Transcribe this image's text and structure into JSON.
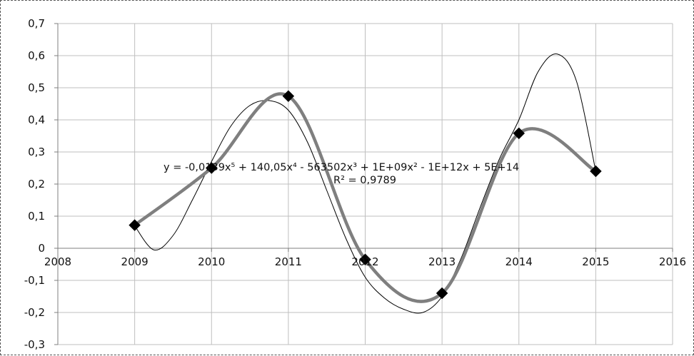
{
  "chart_data": {
    "type": "scatter",
    "title": "",
    "xlabel": "",
    "ylabel": "",
    "xlim": [
      2008,
      2016
    ],
    "ylim": [
      -0.3,
      0.7
    ],
    "x_ticks": [
      2008,
      2009,
      2010,
      2011,
      2012,
      2013,
      2014,
      2015,
      2016
    ],
    "y_ticks": [
      -0.3,
      -0.2,
      -0.1,
      0,
      0.1,
      0.2,
      0.3,
      0.4,
      0.5,
      0.6,
      0.7
    ],
    "x_tick_labels": [
      "2008",
      "2009",
      "2010",
      "2011",
      "2012",
      "2013",
      "2014",
      "2015",
      "2016"
    ],
    "y_tick_labels": [
      "-0,3",
      "-0,2",
      "-0,1",
      "0",
      "0,1",
      "0,2",
      "0,3",
      "0,4",
      "0,5",
      "0,6",
      "0,7"
    ],
    "grid": true,
    "legend": "none",
    "series": [
      {
        "marker": "diamond",
        "line": "smoothed",
        "color": "#7f7f7f",
        "marker_color": "#000000",
        "x": [
          2009,
          2010,
          2011,
          2012,
          2013,
          2014,
          2015
        ],
        "y": [
          0.072,
          0.25,
          0.474,
          -0.035,
          -0.14,
          0.358,
          0.24
        ]
      }
    ],
    "trendline": {
      "type": "polynomial",
      "order": 5,
      "color": "#000000",
      "equation": "y = -0,0139x⁵ + 140,05x⁴ - 563502x³ + 1E+09x² - 1E+12x + 5E+14",
      "r_squared": "R² = 0,9789",
      "curve_x": [
        2009,
        2009.25,
        2009.5,
        2009.75,
        2010,
        2010.25,
        2010.5,
        2010.75,
        2011,
        2011.25,
        2011.5,
        2011.75,
        2012,
        2012.25,
        2012.5,
        2012.75,
        2013,
        2013.25,
        2013.5,
        2013.75,
        2014,
        2014.25,
        2014.5,
        2014.75,
        2015
      ],
      "curve_y": [
        0.07,
        -0.005,
        0.04,
        0.15,
        0.27,
        0.38,
        0.445,
        0.46,
        0.43,
        0.33,
        0.18,
        0.03,
        -0.09,
        -0.155,
        -0.19,
        -0.2,
        -0.15,
        -0.03,
        0.13,
        0.28,
        0.4,
        0.55,
        0.605,
        0.52,
        0.24
      ]
    }
  }
}
